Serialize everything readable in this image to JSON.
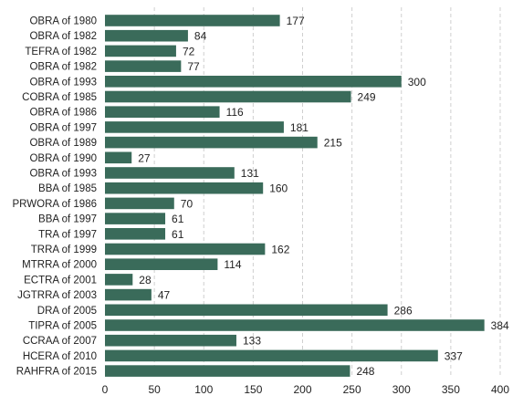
{
  "chart_data": {
    "type": "bar",
    "orientation": "horizontal",
    "categories": [
      "OBRA of 1980",
      "OBRA of 1982",
      "TEFRA of 1982",
      "OBRA of 1982",
      "OBRA of 1993",
      "COBRA of 1985",
      "OBRA of 1986",
      "OBRA of 1997",
      "OBRA of 1989",
      "OBRA of 1990",
      "OBRA of 1993",
      "BBA of 1985",
      "PRWORA of 1986",
      "BBA of 1997",
      "TRA of 1997",
      "TRRA of 1999",
      "MTRRA of 2000",
      "ECTRA of 2001",
      "JGTRRA of 2003",
      "DRA of 2005",
      "TIPRA of 2005",
      "CCRAA of 2007",
      "HCERA of 2010",
      "RAHFRA of 2015"
    ],
    "values": [
      177,
      84,
      72,
      77,
      300,
      249,
      116,
      181,
      215,
      27,
      131,
      160,
      70,
      61,
      61,
      162,
      114,
      28,
      47,
      286,
      384,
      133,
      337,
      248
    ],
    "title": "",
    "xlabel": "",
    "ylabel": "",
    "xlim": [
      0,
      400
    ],
    "xticks": [
      0,
      50,
      100,
      150,
      200,
      250,
      300,
      350,
      400
    ],
    "grid": "vertical dashed",
    "legend": "none",
    "bar_color": "#3a6b5a"
  }
}
